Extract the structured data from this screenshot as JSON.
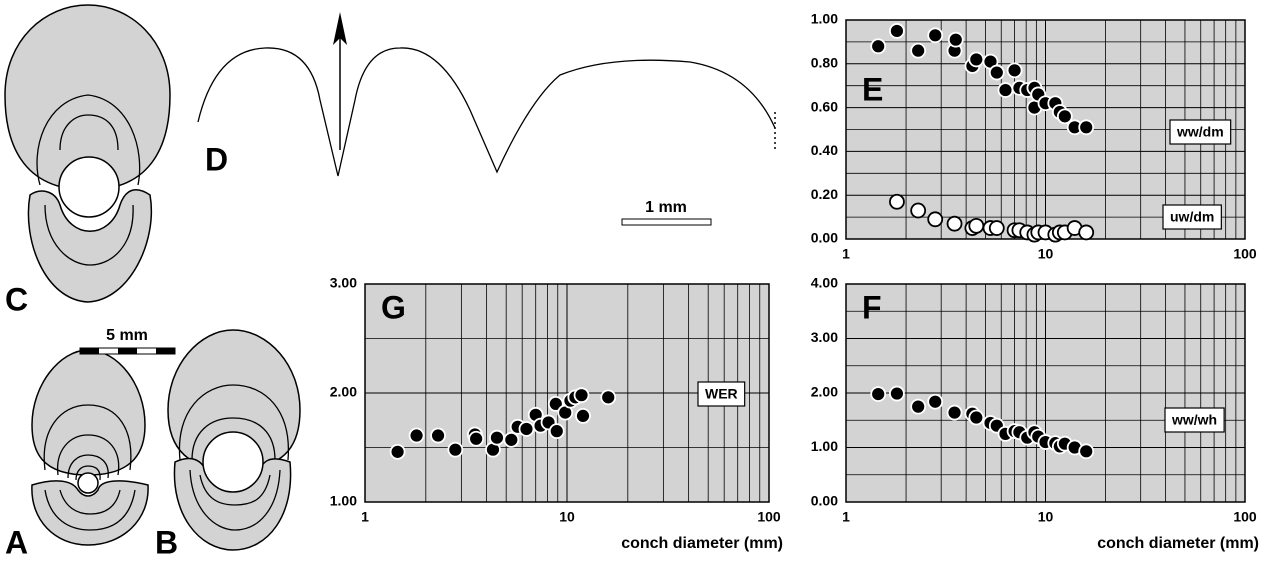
{
  "figure": {
    "panel_labels": [
      "A",
      "B",
      "C",
      "D"
    ],
    "scale_bars": [
      "5 mm",
      "1 mm"
    ]
  },
  "chart_data": [
    {
      "type": "scatter",
      "panel": "E",
      "xlog": true,
      "xlim": [
        1,
        100
      ],
      "xticks": [
        1,
        10,
        100
      ],
      "ylim": [
        0,
        1
      ],
      "yticks": [
        {
          "value": 0,
          "label": "0.00"
        },
        {
          "value": 0.2,
          "label": "0.20"
        },
        {
          "value": 0.4,
          "label": "0.40"
        },
        {
          "value": 0.6,
          "label": "0.60"
        },
        {
          "value": 0.8,
          "label": "0.80"
        },
        {
          "value": 1,
          "label": "1.00"
        }
      ],
      "grid": true,
      "background": "#d3d3d3",
      "series": [
        {
          "name": "ww/dm",
          "color": "#000000",
          "x": [
            1.45,
            1.8,
            2.3,
            2.8,
            3.5,
            3.55,
            4.3,
            4.5,
            5.3,
            5.7,
            6.3,
            7.0,
            7.4,
            8.1,
            8.8,
            8.8,
            9.2,
            10,
            11.2,
            11.8,
            12.5,
            14,
            16
          ],
          "values": [
            0.88,
            0.95,
            0.86,
            0.93,
            0.86,
            0.91,
            0.79,
            0.82,
            0.81,
            0.76,
            0.68,
            0.77,
            0.69,
            0.68,
            0.69,
            0.6,
            0.66,
            0.62,
            0.62,
            0.58,
            0.56,
            0.51,
            0.51
          ]
        },
        {
          "name": "uw/dm",
          "color": "#ffffff",
          "x": [
            1.8,
            2.3,
            2.8,
            3.5,
            4.3,
            4.5,
            5.3,
            5.7,
            7.0,
            7.4,
            8.1,
            8.8,
            9.2,
            10,
            11.2,
            11.8,
            12.5,
            14,
            16
          ],
          "values": [
            0.17,
            0.13,
            0.09,
            0.07,
            0.05,
            0.06,
            0.05,
            0.05,
            0.04,
            0.04,
            0.03,
            0.02,
            0.03,
            0.03,
            0.02,
            0.03,
            0.03,
            0.05,
            0.03
          ]
        }
      ]
    },
    {
      "type": "scatter",
      "panel": "F",
      "x_label": "conch diameter (mm)",
      "xlog": true,
      "xlim": [
        1,
        100
      ],
      "xticks": [
        1,
        10,
        100
      ],
      "ylim": [
        0,
        4
      ],
      "yticks": [
        {
          "value": 0,
          "label": "0.00"
        },
        {
          "value": 1,
          "label": "1.00"
        },
        {
          "value": 2,
          "label": "2.00"
        },
        {
          "value": 3,
          "label": "3.00"
        },
        {
          "value": 4,
          "label": "4.00"
        }
      ],
      "grid": true,
      "background": "#d3d3d3",
      "series": [
        {
          "name": "ww/wh",
          "color": "#000000",
          "x": [
            1.45,
            1.8,
            2.3,
            2.8,
            3.5,
            4.3,
            4.5,
            5.3,
            5.7,
            6.3,
            7.0,
            7.4,
            8.1,
            8.8,
            9.2,
            10,
            11.2,
            11.8,
            12.5,
            14,
            16
          ],
          "values": [
            1.98,
            1.99,
            1.75,
            1.84,
            1.64,
            1.62,
            1.55,
            1.45,
            1.4,
            1.25,
            1.3,
            1.28,
            1.18,
            1.28,
            1.2,
            1.1,
            1.08,
            1.02,
            1.07,
            1.0,
            0.93
          ]
        }
      ]
    },
    {
      "type": "scatter",
      "panel": "G",
      "x_label": "conch diameter (mm)",
      "xlog": true,
      "xlim": [
        1,
        100
      ],
      "xticks": [
        1,
        10,
        100
      ],
      "ylim": [
        1,
        3
      ],
      "yticks": [
        {
          "value": 1,
          "label": "1.00"
        },
        {
          "value": 2,
          "label": "2.00"
        },
        {
          "value": 3,
          "label": "3.00"
        }
      ],
      "grid": true,
      "background": "#d3d3d3",
      "series": [
        {
          "name": "WER",
          "color": "#000000",
          "x": [
            1.45,
            1.8,
            2.3,
            2.8,
            3.5,
            3.55,
            4.3,
            4.5,
            5.3,
            5.7,
            6.3,
            7.0,
            7.4,
            8.1,
            8.8,
            8.9,
            9.8,
            10.4,
            11,
            11.8,
            12,
            16
          ],
          "values": [
            1.46,
            1.61,
            1.61,
            1.48,
            1.62,
            1.58,
            1.48,
            1.59,
            1.57,
            1.69,
            1.67,
            1.8,
            1.7,
            1.73,
            1.9,
            1.65,
            1.82,
            1.93,
            1.96,
            1.98,
            1.79,
            1.96
          ]
        }
      ]
    }
  ]
}
